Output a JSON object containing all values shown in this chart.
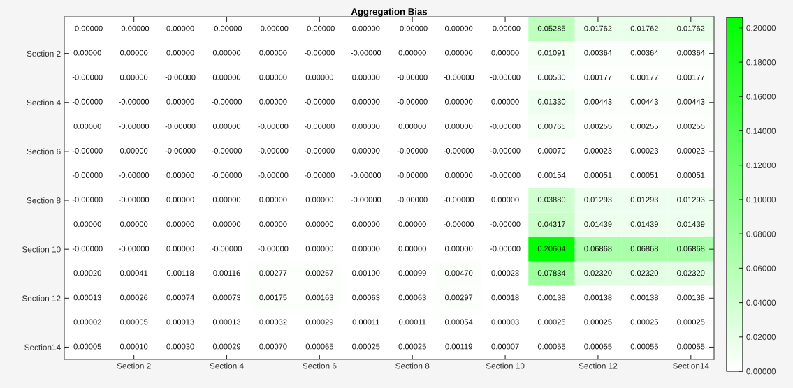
{
  "chart_data": {
    "type": "heatmap",
    "title": "Aggregation Bias",
    "categories": [
      null,
      "Section 2",
      null,
      "Section 4",
      null,
      "Section 6",
      null,
      "Section 8",
      null,
      "Section 10",
      null,
      "Section 12",
      null,
      "Section14"
    ],
    "y_categories": [
      null,
      "Section 2",
      null,
      "Section 4",
      null,
      "Section 6",
      null,
      "Section 8",
      null,
      "Section 10",
      null,
      "Section 12",
      null,
      "Section14"
    ],
    "cells": [
      [
        0,
        0,
        0,
        0,
        0,
        0,
        0,
        0,
        0,
        0,
        0.05285,
        0.01762,
        0.01762,
        0.01762
      ],
      [
        0,
        0,
        0,
        0,
        0,
        0,
        0,
        0,
        0,
        0,
        0.01091,
        0.00364,
        0.00364,
        0.00364
      ],
      [
        0,
        0,
        0,
        0,
        0,
        0,
        0,
        0,
        0,
        0,
        0.0053,
        0.00177,
        0.00177,
        0.00177
      ],
      [
        0,
        0,
        0,
        0,
        0,
        0,
        0,
        0,
        0,
        0,
        0.0133,
        0.00443,
        0.00443,
        0.00443
      ],
      [
        0,
        0,
        0,
        0,
        0,
        0,
        0,
        0,
        0,
        0,
        0.00765,
        0.00255,
        0.00255,
        0.00255
      ],
      [
        0,
        0,
        0,
        0,
        0,
        0,
        0,
        0,
        0,
        0,
        0.0007,
        0.00023,
        0.00023,
        0.00023
      ],
      [
        0,
        0,
        0,
        0,
        0,
        0,
        0,
        0,
        0,
        0,
        0.00154,
        0.00051,
        0.00051,
        0.00051
      ],
      [
        0,
        0,
        0,
        0,
        0,
        0,
        0,
        0,
        0,
        0,
        0.0388,
        0.01293,
        0.01293,
        0.01293
      ],
      [
        0,
        0,
        0,
        0,
        0,
        0,
        0,
        0,
        0,
        0,
        0.04317,
        0.01439,
        0.01439,
        0.01439
      ],
      [
        0,
        0,
        0,
        0,
        0,
        0,
        0,
        0,
        0,
        0,
        0.20604,
        0.06868,
        0.06868,
        0.06868
      ],
      [
        0.0002,
        0.00041,
        0.00118,
        0.00116,
        0.00277,
        0.00257,
        0.001,
        0.00099,
        0.0047,
        0.00028,
        0.07834,
        0.0232,
        0.0232,
        0.0232
      ],
      [
        0.00013,
        0.00026,
        0.00074,
        0.00073,
        0.00175,
        0.00163,
        0.00063,
        0.00063,
        0.00297,
        0.00018,
        0.00138,
        0.00138,
        0.00138,
        0.00138
      ],
      [
        2e-05,
        5e-05,
        0.00013,
        0.00013,
        0.00032,
        0.00029,
        0.00011,
        0.00011,
        0.00054,
        3e-05,
        0.00025,
        0.00025,
        0.00025,
        0.00025
      ],
      [
        5e-05,
        0.0001,
        0.0003,
        0.00029,
        0.0007,
        0.00065,
        0.00025,
        0.00025,
        0.00119,
        7e-05,
        0.00055,
        0.00055,
        0.00055,
        0.00055
      ]
    ],
    "cell_labels": [
      [
        "-0.00000",
        "-0.00000",
        "0.00000",
        "-0.00000",
        "-0.00000",
        "-0.00000",
        "0.00000",
        "-0.00000",
        "0.00000",
        "-0.00000",
        "0.05285",
        "0.01762",
        "0.01762",
        "0.01762"
      ],
      [
        "0.00000",
        "0.00000",
        "0.00000",
        "0.00000",
        "0.00000",
        "-0.00000",
        "-0.00000",
        "0.00000",
        "0.00000",
        "0.00000",
        "0.01091",
        "0.00364",
        "0.00364",
        "0.00364"
      ],
      [
        "-0.00000",
        "0.00000",
        "-0.00000",
        "0.00000",
        "0.00000",
        "0.00000",
        "0.00000",
        "-0.00000",
        "-0.00000",
        "-0.00000",
        "0.00530",
        "0.00177",
        "0.00177",
        "0.00177"
      ],
      [
        "-0.00000",
        "-0.00000",
        "0.00000",
        "-0.00000",
        "0.00000",
        "-0.00000",
        "0.00000",
        "-0.00000",
        "0.00000",
        "0.00000",
        "0.01330",
        "0.00443",
        "0.00443",
        "0.00443"
      ],
      [
        "0.00000",
        "-0.00000",
        "-0.00000",
        "0.00000",
        "-0.00000",
        "-0.00000",
        "0.00000",
        "0.00000",
        "0.00000",
        "-0.00000",
        "0.00765",
        "0.00255",
        "0.00255",
        "0.00255"
      ],
      [
        "-0.00000",
        "0.00000",
        "-0.00000",
        "-0.00000",
        "-0.00000",
        "-0.00000",
        "0.00000",
        "-0.00000",
        "-0.00000",
        "-0.00000",
        "0.00070",
        "0.00023",
        "0.00023",
        "0.00023"
      ],
      [
        "-0.00000",
        "-0.00000",
        "0.00000",
        "-0.00000",
        "-0.00000",
        "-0.00000",
        "-0.00000",
        "-0.00000",
        "0.00000",
        "-0.00000",
        "0.00154",
        "0.00051",
        "0.00051",
        "0.00051"
      ],
      [
        "-0.00000",
        "-0.00000",
        "0.00000",
        "0.00000",
        "0.00000",
        "0.00000",
        "-0.00000",
        "-0.00000",
        "-0.00000",
        "0.00000",
        "0.03880",
        "0.01293",
        "0.01293",
        "0.01293"
      ],
      [
        "0.00000",
        "0.00000",
        "0.00000",
        "0.00000",
        "0.00000",
        "0.00000",
        "0.00000",
        "0.00000",
        "-0.00000",
        "-0.00000",
        "0.04317",
        "0.01439",
        "0.01439",
        "0.01439"
      ],
      [
        "-0.00000",
        "-0.00000",
        "0.00000",
        "-0.00000",
        "-0.00000",
        "0.00000",
        "0.00000",
        "0.00000",
        "0.00000",
        "-0.00000",
        "0.20604",
        "0.06868",
        "0.06868",
        "0.06868"
      ],
      [
        "0.00020",
        "0.00041",
        "0.00118",
        "0.00116",
        "0.00277",
        "0.00257",
        "0.00100",
        "0.00099",
        "0.00470",
        "0.00028",
        "0.07834",
        "0.02320",
        "0.02320",
        "0.02320"
      ],
      [
        "0.00013",
        "0.00026",
        "0.00074",
        "0.00073",
        "0.00175",
        "0.00163",
        "0.00063",
        "0.00063",
        "0.00297",
        "0.00018",
        "0.00138",
        "0.00138",
        "0.00138",
        "0.00138"
      ],
      [
        "0.00002",
        "0.00005",
        "0.00013",
        "0.00013",
        "0.00032",
        "0.00029",
        "0.00011",
        "0.00011",
        "0.00054",
        "0.00003",
        "0.00025",
        "0.00025",
        "0.00025",
        "0.00025"
      ],
      [
        "0.00005",
        "0.00010",
        "0.00030",
        "0.00029",
        "0.00070",
        "0.00065",
        "0.00025",
        "0.00025",
        "0.00119",
        "0.00007",
        "0.00055",
        "0.00055",
        "0.00055",
        "0.00055"
      ]
    ],
    "clim": [
      0,
      0.20604
    ],
    "cticks": [
      {
        "value": 0,
        "label": "0.00000"
      },
      {
        "value": 0.02,
        "label": "0.02000"
      },
      {
        "value": 0.04,
        "label": "0.04000"
      },
      {
        "value": 0.06,
        "label": "0.06000"
      },
      {
        "value": 0.08,
        "label": "0.08000"
      },
      {
        "value": 0.1,
        "label": "0.10000"
      },
      {
        "value": 0.12,
        "label": "0.12000"
      },
      {
        "value": 0.14,
        "label": "0.14000"
      },
      {
        "value": 0.16,
        "label": "0.16000"
      },
      {
        "value": 0.18,
        "label": "0.18000"
      },
      {
        "value": 0.2,
        "label": "0.20000"
      }
    ],
    "color": "#00ff00"
  }
}
